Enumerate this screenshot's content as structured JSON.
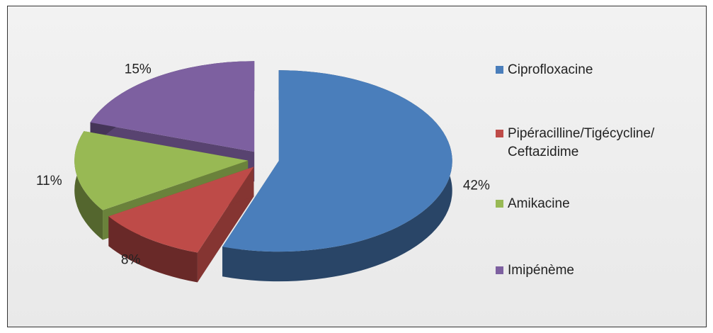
{
  "chart_data": {
    "type": "pie3d",
    "categories": [
      "Ciprofloxacine",
      "Pipéracilline/Tigécycline/ Ceftazidime",
      "Amikacine",
      "Imipénème"
    ],
    "values": [
      42,
      8,
      11,
      15
    ],
    "value_labels": [
      "42%",
      "8%",
      "11%",
      "15%"
    ],
    "colors": [
      "#4a7ebb",
      "#be4b48",
      "#98b954",
      "#7d60a0"
    ],
    "legend": "right"
  }
}
